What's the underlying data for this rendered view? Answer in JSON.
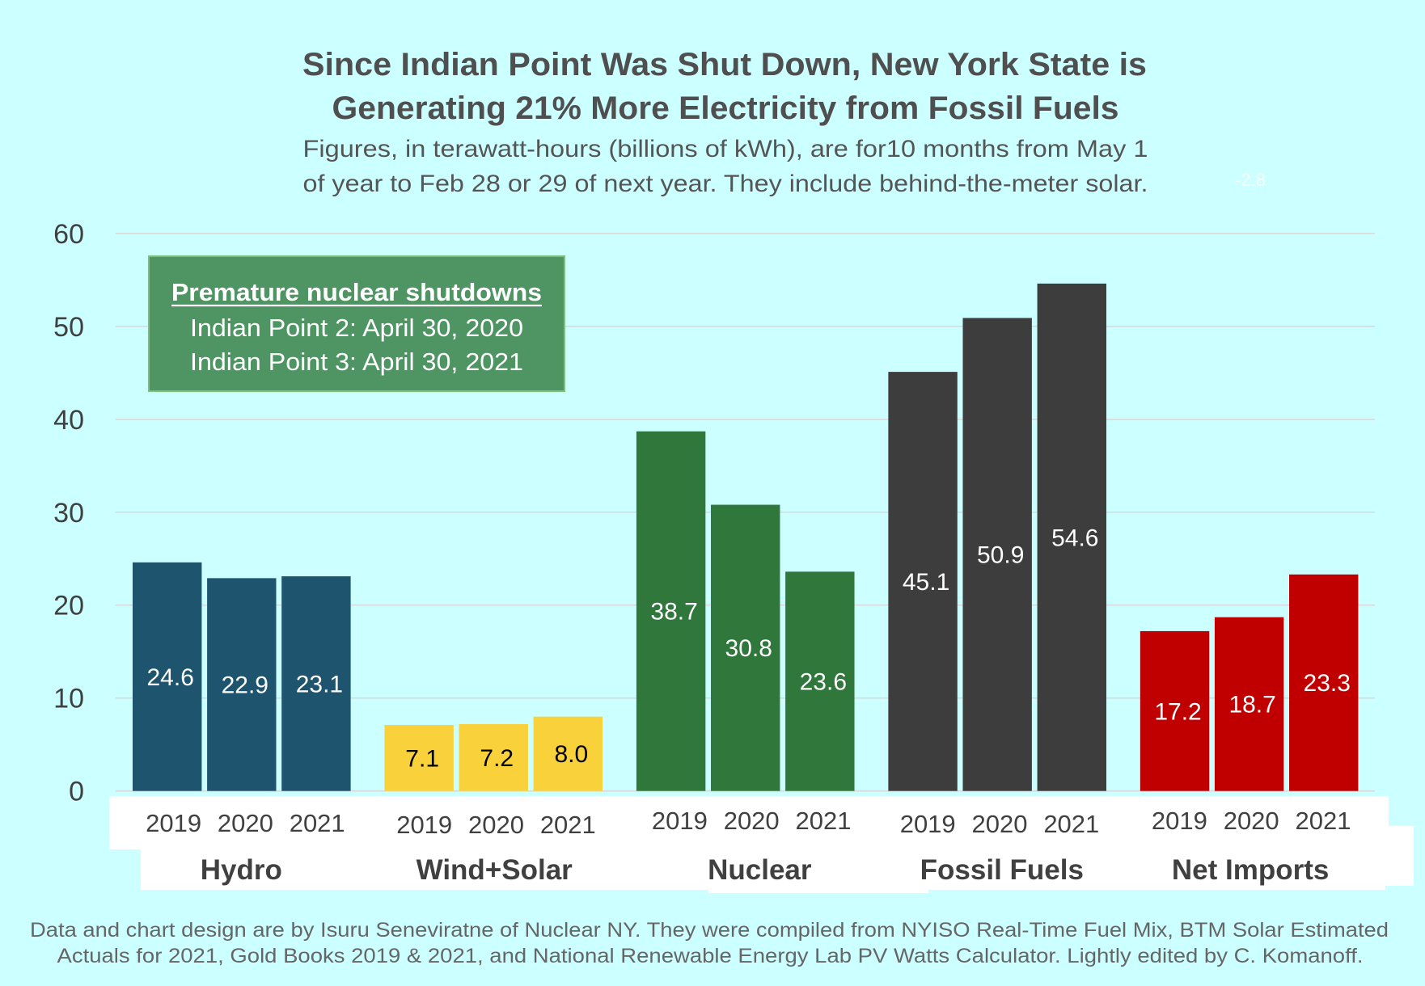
{
  "colors": {
    "background": "#CCFFFF",
    "title": "#4F4F4F",
    "subtitle": "#555555",
    "axis_text": "#404040",
    "grid": "#D9D9D9",
    "axis_label_box": "#FFFFFF",
    "annotation_fill": "#4F9463",
    "annotation_border": "#7FBF7F",
    "annotation_text": "#FFFFFF",
    "source_note": "#666666",
    "stray_label": "#FFFFFF"
  },
  "chart_data": {
    "type": "bar",
    "title": [
      "Since Indian Point Was Shut Down, New York State is",
      "Generating 21% More Electricity from Fossil Fuels"
    ],
    "subtitle": [
      "Figures, in terawatt-hours (billions of kWh), are for10 months from May 1",
      "of year to Feb 28 or 29 of next year. They include behind-the-meter solar."
    ],
    "xlabel": "",
    "ylabel": "",
    "categories": [
      "Hydro",
      "Wind+Solar",
      "Nuclear",
      "Fossil Fuels",
      "Net Imports"
    ],
    "series": [
      {
        "name": "2019",
        "values": [
          24.6,
          7.1,
          38.7,
          45.1,
          17.2
        ]
      },
      {
        "name": "2020",
        "values": [
          22.9,
          7.2,
          30.8,
          50.9,
          18.7
        ]
      },
      {
        "name": "2021",
        "values": [
          23.1,
          8.0,
          23.6,
          54.6,
          23.3
        ]
      }
    ],
    "category_colors": [
      "#1F546E",
      "#F8D13B",
      "#2F773B",
      "#3D3D3D",
      "#C00000"
    ],
    "data_label_colors": [
      "#FFFFFF",
      "#000000",
      "#FFFFFF",
      "#FFFFFF",
      "#FFFFFF"
    ],
    "ylim": [
      0,
      60
    ],
    "yticks": [
      0,
      10,
      20,
      30,
      40,
      50,
      60
    ],
    "grid": true,
    "annotation": {
      "heading": "Premature nuclear shutdowns",
      "lines": [
        "Indian Point 2: April 30, 2020",
        "Indian Point 3: April 30, 2021"
      ]
    },
    "extra_labels": [
      "-2.8"
    ],
    "source_note": [
      "Data and chart design are by Isuru Seneviratne of Nuclear NY. They were compiled from NYISO Real-Time Fuel Mix, BTM Solar Estimated",
      "Actuals for 2021, Gold Books 2019 & 2021, and National Renewable Energy Lab PV Watts Calculator. Lightly edited by C. Komanoff."
    ]
  }
}
